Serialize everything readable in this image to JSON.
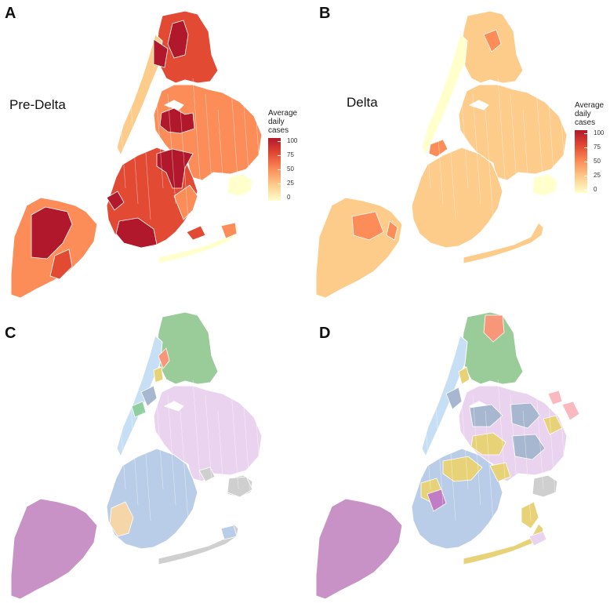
{
  "figure": {
    "panels": [
      {
        "id": "A",
        "letter": "A",
        "period_label": "Pre-Delta",
        "kind": "choropleth"
      },
      {
        "id": "B",
        "letter": "B",
        "period_label": "Delta",
        "kind": "choropleth"
      },
      {
        "id": "C",
        "letter": "C",
        "kind": "cluster"
      },
      {
        "id": "D",
        "letter": "D",
        "kind": "cluster"
      }
    ],
    "legend": {
      "title": "Average\ndaily cases",
      "ticks": [
        "100",
        "75",
        "50",
        "25",
        "0"
      ],
      "scale_min": 0,
      "scale_max": 100,
      "colors": [
        "#b2182b",
        "#e34a33",
        "#fc8d59",
        "#fdcc8a",
        "#ffffcc"
      ]
    },
    "cluster_colors": {
      "staten": "#c992c6",
      "south": "#b9cde8",
      "north": "#99cc99",
      "east": "#ead3ee",
      "grey": "#cfcfcf",
      "tan": "#f5d6a8",
      "slate": "#a6b7cf",
      "yellow": "#e8d277",
      "lightblue": "#c6dff5",
      "salmon": "#f8967a",
      "pink": "#f9b9bf",
      "purple": "#c07cc4",
      "teal": "#8fcf9f"
    }
  }
}
